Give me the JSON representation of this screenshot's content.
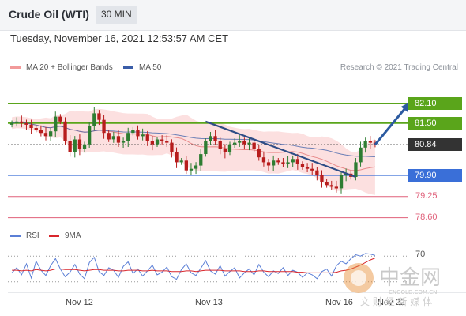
{
  "header": {
    "title": "Crude Oil (WTI)",
    "interval": "30 MIN",
    "timestamp": "Tuesday, November 16, 2021 12:53:57 AM CET"
  },
  "legend": {
    "ma20_label": "MA 20 + Bollinger Bands",
    "ma50_label": "MA 50",
    "research": "Research © 2021 Trading Central"
  },
  "colors": {
    "bollinger": "#f7a6a6",
    "ma50": "#3a5da8",
    "resistance": "#5aa51b",
    "support": "#3a6fd8",
    "lower_support": "#e0607a",
    "current": "#333333",
    "up_candle": "#2e7d32",
    "down_candle": "#b71c1c",
    "rsi": "#5b7fd6",
    "rsi_ma": "#d9262c"
  },
  "watermark": {
    "brand": "中金网",
    "domain": "CNGOLD.COM.CN",
    "slogan": "文 财 经 新 媒 体"
  },
  "chart_data": {
    "type": "candlestick",
    "ylim": [
      78.3,
      82.9
    ],
    "x_ticks": [
      "Nov 12",
      "Nov 13",
      "Nov 16",
      "Nov 22"
    ],
    "levels": [
      {
        "value": 82.1,
        "label": "82.10",
        "kind": "resistance"
      },
      {
        "value": 81.5,
        "label": "81.50",
        "kind": "resistance"
      },
      {
        "value": 80.84,
        "label": "80.84",
        "kind": "current"
      },
      {
        "value": 79.9,
        "label": "79.90",
        "kind": "support"
      },
      {
        "value": 79.25,
        "label": "79.25",
        "kind": "lower_support"
      },
      {
        "value": 78.6,
        "label": "78.60",
        "kind": "lower_support"
      }
    ],
    "trendline": [
      [
        40,
        81.55
      ],
      [
        71,
        79.85
      ]
    ],
    "forecast_arrow": [
      [
        75,
        80.84
      ],
      [
        82,
        82.1
      ]
    ],
    "closes": [
      81.5,
      81.55,
      81.5,
      81.45,
      81.35,
      81.3,
      81.2,
      81.1,
      81.25,
      81.7,
      81.55,
      80.95,
      80.6,
      81.0,
      80.7,
      80.85,
      81.4,
      81.8,
      81.6,
      81.2,
      81.0,
      81.1,
      80.9,
      80.95,
      81.2,
      81.3,
      81.1,
      81.15,
      80.95,
      80.85,
      81.0,
      80.95,
      80.9,
      80.6,
      80.3,
      80.35,
      80.05,
      80.1,
      80.2,
      80.55,
      80.95,
      81.1,
      80.95,
      80.7,
      80.6,
      80.85,
      80.9,
      80.95,
      80.85,
      80.9,
      80.7,
      80.45,
      80.3,
      80.2,
      80.35,
      80.3,
      80.25,
      80.3,
      80.4,
      80.25,
      80.15,
      80.1,
      80.05,
      79.9,
      79.7,
      79.6,
      79.55,
      79.5,
      79.9,
      79.95,
      79.85,
      80.3,
      80.75,
      80.95,
      80.9,
      80.84
    ],
    "rsi": {
      "label": "RSI",
      "ma_label": "9MA",
      "level_label": "70",
      "level": 70,
      "ylim": [
        20,
        80
      ],
      "values": [
        44,
        52,
        41,
        58,
        36,
        62,
        48,
        40,
        55,
        66,
        50,
        38,
        45,
        57,
        42,
        35,
        60,
        68,
        46,
        40,
        52,
        48,
        37,
        54,
        61,
        43,
        50,
        39,
        47,
        56,
        41,
        45,
        53,
        38,
        34,
        49,
        58,
        44,
        40,
        51,
        63,
        47,
        42,
        55,
        39,
        46,
        52,
        36,
        44,
        50,
        41,
        57,
        45,
        38,
        47,
        43,
        52,
        40,
        48,
        45,
        37,
        44,
        41,
        35,
        46,
        50,
        39,
        55,
        62,
        58,
        66,
        72,
        70,
        74,
        73,
        71
      ],
      "ma_values": [
        48,
        48,
        47,
        48,
        47,
        49,
        48,
        47,
        48,
        50,
        50,
        49,
        49,
        49,
        48,
        47,
        48,
        49,
        49,
        48,
        48,
        48,
        47,
        47,
        48,
        48,
        48,
        47,
        47,
        48,
        47,
        47,
        47,
        46,
        46,
        46,
        47,
        47,
        46,
        47,
        48,
        48,
        48,
        48,
        47,
        47,
        47,
        47,
        46,
        46,
        46,
        47,
        47,
        46,
        46,
        46,
        46,
        46,
        46,
        45,
        45,
        44,
        44,
        44,
        44,
        44,
        44,
        45,
        47,
        48,
        50,
        53,
        56,
        60,
        64,
        67
      ]
    }
  }
}
